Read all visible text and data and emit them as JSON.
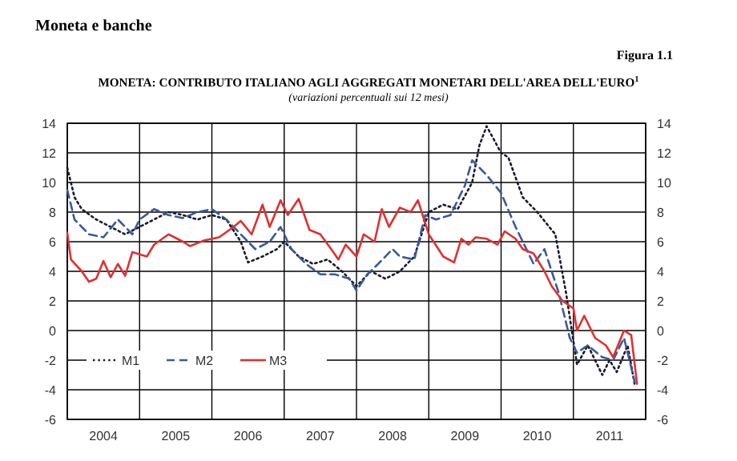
{
  "chart_data": {
    "type": "line",
    "title": "MONETA: CONTRIBUTO ITALIANO AGLI AGGREGATI MONETARI DELL'AREA DELL'EURO$^{1}$",
    "subtitle": "(variazioni percentuali sui 12 mesi)",
    "annotations": [
      "Moneta e banche",
      "Figura 1.1"
    ],
    "xlim": [
      2004,
      2012
    ],
    "xticks": [
      {
        "value": 2004,
        "label": null
      },
      {
        "value": 2004.5,
        "label": "2004"
      },
      {
        "value": 2005,
        "label": null
      },
      {
        "value": 2005.5,
        "label": "2005"
      },
      {
        "value": 2006,
        "label": null
      },
      {
        "value": 2006.5,
        "label": "2006"
      },
      {
        "value": 2007,
        "label": null
      },
      {
        "value": 2007.5,
        "label": "2007"
      },
      {
        "value": 2008,
        "label": null
      },
      {
        "value": 2008.5,
        "label": "2008"
      },
      {
        "value": 2009,
        "label": null
      },
      {
        "value": 2009.5,
        "label": "2009"
      },
      {
        "value": 2010,
        "label": null
      },
      {
        "value": 2010.5,
        "label": "2010"
      },
      {
        "value": 2011,
        "label": null
      },
      {
        "value": 2011.5,
        "label": "2011"
      },
      {
        "value": 2012,
        "label": null
      }
    ],
    "ylim": [
      -6,
      14
    ],
    "yticks": [
      -6,
      -4,
      -2,
      0,
      2,
      4,
      6,
      8,
      10,
      12,
      14
    ],
    "y2lim": [
      -6,
      14
    ],
    "y2ticks": [
      -6,
      -4,
      -2,
      0,
      2,
      4,
      6,
      8,
      10,
      12,
      14
    ],
    "grid": true,
    "legend": "bottom left",
    "series": [
      {
        "name": "M1",
        "color": "#1a1a2e",
        "line_style": "dotted",
        "x": [
          2004.0,
          2004.1,
          2004.2,
          2004.4,
          2004.6,
          2004.8,
          2005.0,
          2005.2,
          2005.4,
          2005.6,
          2005.8,
          2006.0,
          2006.2,
          2006.4,
          2006.5,
          2006.7,
          2006.9,
          2007.0,
          2007.2,
          2007.4,
          2007.6,
          2007.8,
          2008.0,
          2008.2,
          2008.4,
          2008.6,
          2008.8,
          2009.0,
          2009.2,
          2009.4,
          2009.6,
          2009.7,
          2009.8,
          2010.0,
          2010.1,
          2010.3,
          2010.5,
          2010.75,
          2010.9,
          2011.05,
          2011.2,
          2011.4,
          2011.5,
          2011.6,
          2011.75,
          2011.85
        ],
        "values": [
          11,
          9,
          8.2,
          7.5,
          7,
          6.5,
          7,
          7.5,
          8,
          7.8,
          7.5,
          7.8,
          7.5,
          6,
          4.6,
          5,
          5.5,
          6,
          5,
          4.5,
          4.8,
          4,
          3,
          4,
          3.5,
          4,
          5,
          8,
          8.5,
          8.2,
          10,
          12.5,
          13.8,
          12,
          11.7,
          9,
          8,
          6.5,
          2.5,
          -2.3,
          -1,
          -3,
          -2,
          -2.8,
          -1,
          -3.7
        ]
      },
      {
        "name": "M2",
        "color": "#3a5a9a",
        "line_style": "dashed",
        "x": [
          2004.0,
          2004.1,
          2004.3,
          2004.5,
          2004.7,
          2004.9,
          2005.0,
          2005.2,
          2005.4,
          2005.6,
          2005.8,
          2006.0,
          2006.2,
          2006.4,
          2006.6,
          2006.8,
          2006.95,
          2007.1,
          2007.3,
          2007.5,
          2007.7,
          2007.9,
          2008.0,
          2008.15,
          2008.3,
          2008.5,
          2008.6,
          2008.8,
          2008.95,
          2009.1,
          2009.3,
          2009.5,
          2009.6,
          2009.8,
          2010.0,
          2010.2,
          2010.45,
          2010.6,
          2010.8,
          2010.95,
          2011.05,
          2011.2,
          2011.4,
          2011.55,
          2011.7,
          2011.85
        ],
        "values": [
          9.5,
          7.5,
          6.5,
          6.3,
          7.5,
          6.5,
          7.5,
          8.2,
          7.8,
          7.6,
          8,
          8.2,
          7.5,
          6.5,
          5.5,
          6,
          7,
          5.5,
          4.5,
          3.8,
          3.8,
          3.5,
          2.7,
          3.8,
          4.5,
          5.5,
          5,
          4.8,
          7.8,
          7.5,
          7.8,
          9.8,
          11.5,
          10.5,
          9.3,
          7,
          4.5,
          5.5,
          2.5,
          -0.5,
          -1.5,
          -1,
          -1.8,
          -2,
          -0.5,
          -3.5
        ]
      },
      {
        "name": "M3",
        "color": "#e03030",
        "line_style": "solid",
        "x": [
          2004.0,
          2004.05,
          2004.2,
          2004.3,
          2004.4,
          2004.5,
          2004.6,
          2004.7,
          2004.8,
          2004.9,
          2005.1,
          2005.2,
          2005.4,
          2005.6,
          2005.7,
          2005.9,
          2006.1,
          2006.3,
          2006.4,
          2006.55,
          2006.7,
          2006.8,
          2006.95,
          2007.05,
          2007.2,
          2007.35,
          2007.5,
          2007.65,
          2007.75,
          2007.85,
          2008.0,
          2008.1,
          2008.25,
          2008.35,
          2008.45,
          2008.6,
          2008.75,
          2008.85,
          2009.0,
          2009.2,
          2009.35,
          2009.45,
          2009.55,
          2009.65,
          2009.8,
          2009.95,
          2010.05,
          2010.2,
          2010.3,
          2010.45,
          2010.6,
          2010.7,
          2010.85,
          2011.0,
          2011.05,
          2011.15,
          2011.3,
          2011.45,
          2011.55,
          2011.7,
          2011.8,
          2011.88
        ],
        "values": [
          6.6,
          4.8,
          4,
          3.3,
          3.5,
          4.7,
          3.6,
          4.5,
          3.7,
          5.3,
          5,
          5.8,
          6.5,
          6,
          5.7,
          6.1,
          6.3,
          7,
          7.4,
          6.5,
          8.5,
          7,
          8.8,
          7.8,
          8.9,
          6.8,
          6.5,
          5.5,
          4.8,
          5.8,
          5,
          6.5,
          6,
          8.2,
          7,
          8.3,
          8,
          8.8,
          6.5,
          5,
          4.6,
          6.2,
          5.8,
          6.3,
          6.2,
          5.8,
          6.7,
          6.2,
          5.5,
          5.2,
          4,
          3,
          2,
          1.5,
          0,
          1,
          -0.5,
          -1,
          -1.8,
          0,
          -0.3,
          -3.6
        ]
      }
    ]
  }
}
